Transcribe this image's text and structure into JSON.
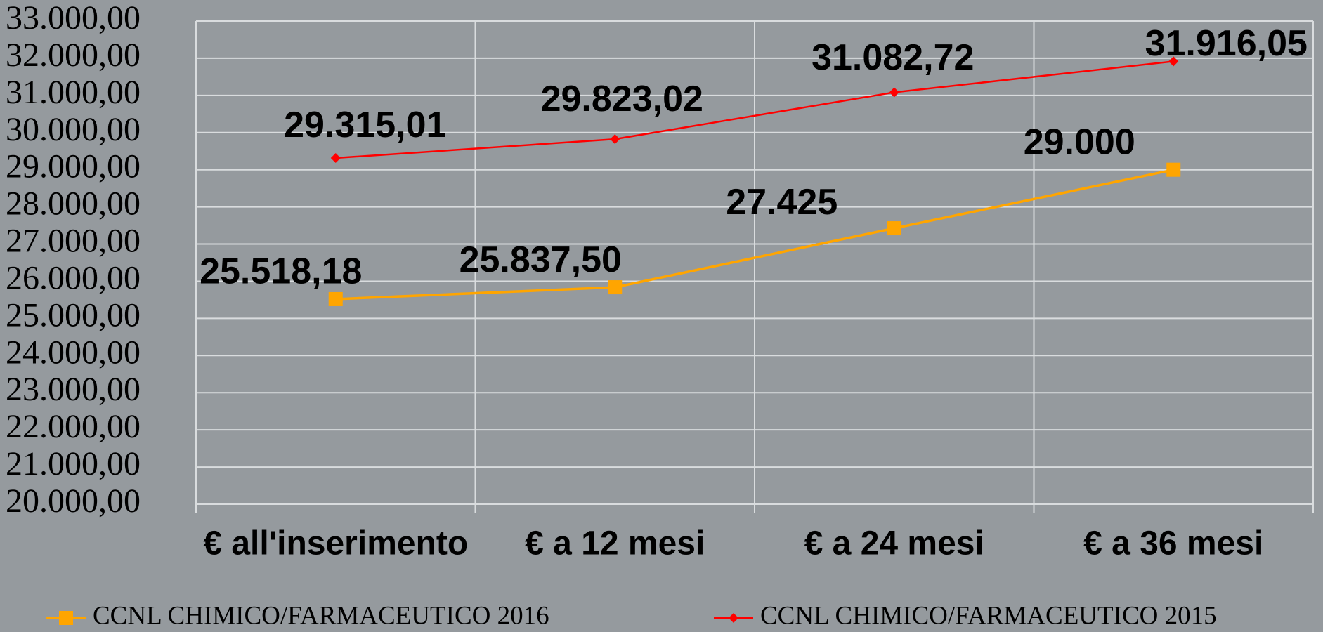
{
  "chart_data": {
    "type": "line",
    "categories": [
      "€ all'inserimento",
      "€ a 12 mesi",
      "€ a 24 mesi",
      "€ a 36 mesi"
    ],
    "series": [
      {
        "name": "CCNL CHIMICO/FARMACEUTICO 2016",
        "color": "#ffa500",
        "marker": "square",
        "values": [
          25518.18,
          25837.5,
          27425,
          29000
        ],
        "value_labels": [
          "25.518,18",
          "25.837,50",
          "27.425",
          "29.000"
        ]
      },
      {
        "name": "CCNL CHIMICO/FARMACEUTICO 2015",
        "color": "#ff0000",
        "marker": "diamond",
        "values": [
          29315.01,
          29823.02,
          31082.72,
          31916.05
        ],
        "value_labels": [
          "29.315,01",
          "29.823,02",
          "31.082,72",
          "31.916,05"
        ]
      }
    ],
    "ylim": [
      20000,
      33000
    ],
    "yticks": [
      {
        "value": 20000,
        "label": "20.000,00"
      },
      {
        "value": 21000,
        "label": "21.000,00"
      },
      {
        "value": 22000,
        "label": "22.000,00"
      },
      {
        "value": 23000,
        "label": "23.000,00"
      },
      {
        "value": 24000,
        "label": "24.000,00"
      },
      {
        "value": 25000,
        "label": "25.000,00"
      },
      {
        "value": 26000,
        "label": "26.000,00"
      },
      {
        "value": 27000,
        "label": "27.000,00"
      },
      {
        "value": 28000,
        "label": "28.000,00"
      },
      {
        "value": 29000,
        "label": "29.000,00"
      },
      {
        "value": 30000,
        "label": "30.000,00"
      },
      {
        "value": 31000,
        "label": "31.000,00"
      },
      {
        "value": 32000,
        "label": "32.000,00"
      },
      {
        "value": 33000,
        "label": "33.000,00"
      }
    ],
    "grid": true,
    "legend": "bottom"
  }
}
